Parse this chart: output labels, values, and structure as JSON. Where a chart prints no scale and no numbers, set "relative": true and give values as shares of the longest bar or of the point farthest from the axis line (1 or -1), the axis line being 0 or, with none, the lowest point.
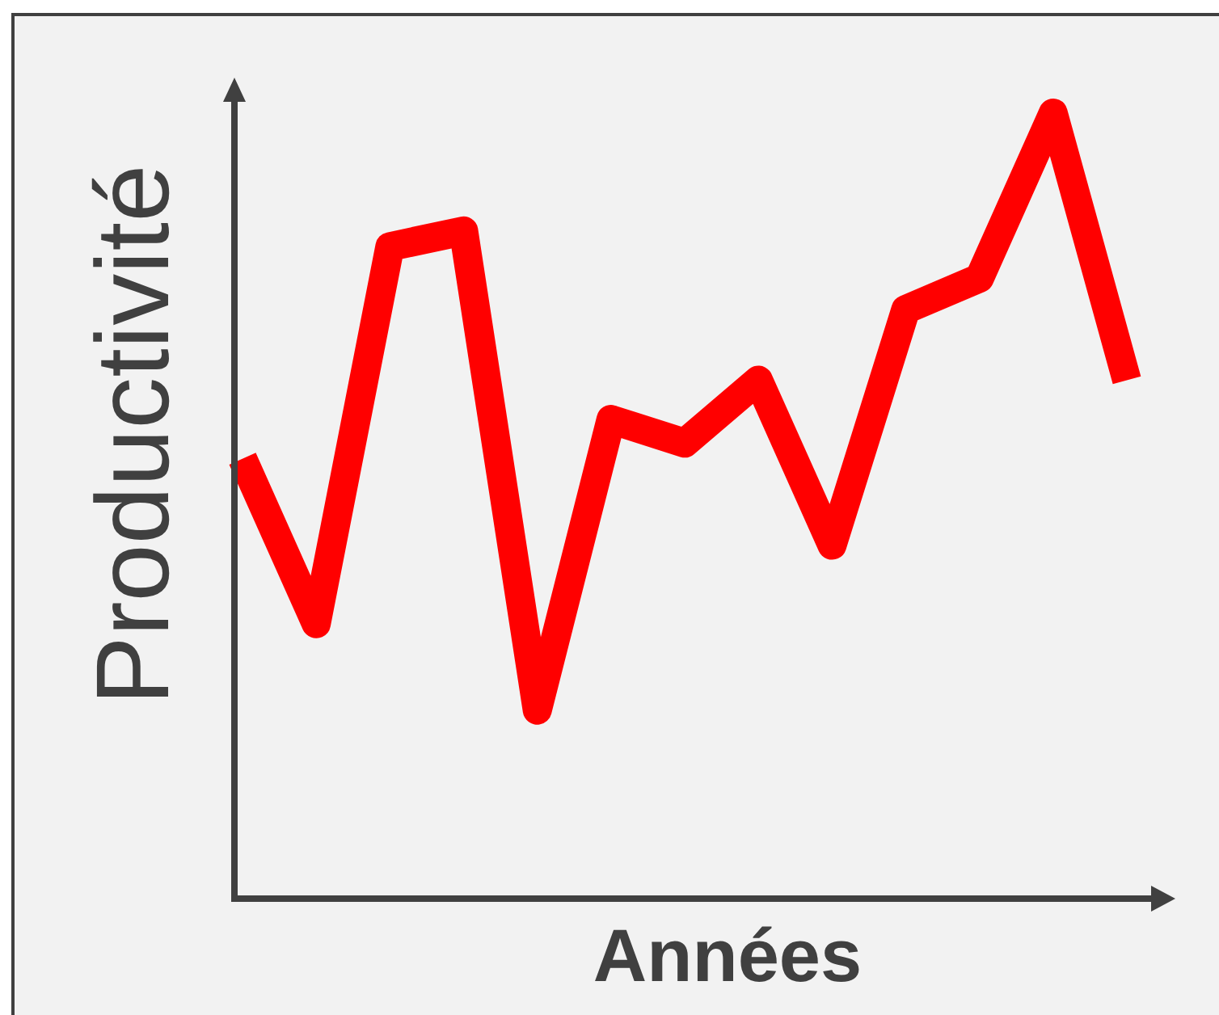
{
  "chart_data": {
    "type": "line",
    "xlabel": "Années",
    "ylabel": "Productivité",
    "relative": true,
    "categories": [
      null,
      null,
      null,
      null,
      null,
      null,
      null,
      null,
      null,
      null,
      null,
      null,
      null
    ],
    "series": [
      {
        "color": "#ff0000",
        "values": [
          0.56,
          0.35,
          0.83,
          0.85,
          0.24,
          0.61,
          0.58,
          0.66,
          0.45,
          0.75,
          0.79,
          1,
          0.66
        ]
      }
    ],
    "line_style": "solid"
  }
}
